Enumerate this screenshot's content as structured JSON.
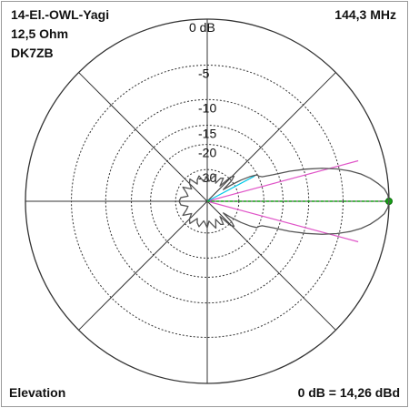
{
  "header": {
    "antenna": "14-El.-OWL-Yagi",
    "impedance": "12,5 Ohm",
    "designer": "DK7ZB",
    "frequency": "144,3 MHz"
  },
  "footer": {
    "plane": "Elevation",
    "reference": "0 dB = 14,26 dBd"
  },
  "chart_data": {
    "type": "polar",
    "scale": "dB",
    "rings_db": [
      0,
      -5,
      -10,
      -15,
      -20,
      -30
    ],
    "tick_labels": [
      "0 dB",
      "-5",
      "-10",
      "-15",
      "-20",
      "-30"
    ],
    "spokes_deg": [
      0,
      45,
      90,
      135,
      180,
      225,
      270,
      315
    ],
    "colors": {
      "pattern": "#555555",
      "grid": "#333333",
      "axis_marker": "#17a317",
      "beamwidth": "#e055c8",
      "elevation": "#00c8e8"
    },
    "beamwidth_lines_deg": [
      15,
      -15
    ],
    "elevation_line_deg": 28,
    "pattern": [
      {
        "deg": 0,
        "db": 0
      },
      {
        "deg": 2,
        "db": -0.1
      },
      {
        "deg": 4,
        "db": -0.4
      },
      {
        "deg": 6,
        "db": -1.0
      },
      {
        "deg": 8,
        "db": -1.7
      },
      {
        "deg": 10,
        "db": -2.6
      },
      {
        "deg": 12,
        "db": -3.8
      },
      {
        "deg": 14,
        "db": -5.3
      },
      {
        "deg": 16,
        "db": -7.2
      },
      {
        "deg": 18,
        "db": -9.6
      },
      {
        "deg": 20,
        "db": -12.5
      },
      {
        "deg": 22,
        "db": -16.3
      },
      {
        "deg": 24,
        "db": -19.0
      },
      {
        "deg": 26,
        "db": -19.8
      },
      {
        "deg": 28,
        "db": -20.2
      },
      {
        "deg": 30,
        "db": -22.5
      },
      {
        "deg": 32,
        "db": -26
      },
      {
        "deg": 34,
        "db": -31
      },
      {
        "deg": 36,
        "db": -38
      },
      {
        "deg": 40,
        "db": -30
      },
      {
        "deg": 43,
        "db": -27.5
      },
      {
        "deg": 46,
        "db": -29
      },
      {
        "deg": 50,
        "db": -38
      },
      {
        "deg": 55,
        "db": -32
      },
      {
        "deg": 60,
        "db": -33
      },
      {
        "deg": 65,
        "db": -38
      },
      {
        "deg": 72,
        "db": -32
      },
      {
        "deg": 78,
        "db": -35
      },
      {
        "deg": 85,
        "db": -38
      },
      {
        "deg": 90,
        "db": -33
      },
      {
        "deg": 95,
        "db": -36
      },
      {
        "deg": 100,
        "db": -38
      },
      {
        "deg": 108,
        "db": -33
      },
      {
        "deg": 115,
        "db": -35
      },
      {
        "deg": 120,
        "db": -38
      },
      {
        "deg": 128,
        "db": -32
      },
      {
        "deg": 135,
        "db": -34
      },
      {
        "deg": 142,
        "db": -38
      },
      {
        "deg": 150,
        "db": -32
      },
      {
        "deg": 158,
        "db": -36
      },
      {
        "deg": 165,
        "db": -38
      },
      {
        "deg": 172,
        "db": -33
      },
      {
        "deg": 180,
        "db": -32
      },
      {
        "deg": 188,
        "db": -33
      },
      {
        "deg": 195,
        "db": -38
      },
      {
        "deg": 202,
        "db": -36
      },
      {
        "deg": 210,
        "db": -32
      },
      {
        "deg": 218,
        "db": -38
      },
      {
        "deg": 225,
        "db": -34
      },
      {
        "deg": 232,
        "db": -32
      },
      {
        "deg": 240,
        "db": -38
      },
      {
        "deg": 245,
        "db": -35
      },
      {
        "deg": 252,
        "db": -33
      },
      {
        "deg": 260,
        "db": -38
      },
      {
        "deg": 265,
        "db": -36
      },
      {
        "deg": 270,
        "db": -33
      },
      {
        "deg": 275,
        "db": -38
      },
      {
        "deg": 282,
        "db": -35
      },
      {
        "deg": 288,
        "db": -32
      },
      {
        "deg": 295,
        "db": -38
      },
      {
        "deg": 300,
        "db": -33
      },
      {
        "deg": 305,
        "db": -32
      },
      {
        "deg": 310,
        "db": -38
      },
      {
        "deg": 314,
        "db": -29
      },
      {
        "deg": 317,
        "db": -27.5
      },
      {
        "deg": 320,
        "db": -30
      },
      {
        "deg": 324,
        "db": -38
      },
      {
        "deg": 326,
        "db": -31
      },
      {
        "deg": 328,
        "db": -26
      },
      {
        "deg": 330,
        "db": -22.5
      },
      {
        "deg": 332,
        "db": -20.2
      },
      {
        "deg": 334,
        "db": -19.8
      },
      {
        "deg": 336,
        "db": -19.0
      },
      {
        "deg": 338,
        "db": -16.3
      },
      {
        "deg": 340,
        "db": -12.5
      },
      {
        "deg": 342,
        "db": -9.6
      },
      {
        "deg": 344,
        "db": -7.2
      },
      {
        "deg": 346,
        "db": -5.3
      },
      {
        "deg": 348,
        "db": -3.8
      },
      {
        "deg": 350,
        "db": -2.6
      },
      {
        "deg": 352,
        "db": -1.7
      },
      {
        "deg": 354,
        "db": -1.0
      },
      {
        "deg": 356,
        "db": -0.4
      },
      {
        "deg": 358,
        "db": -0.1
      }
    ]
  }
}
